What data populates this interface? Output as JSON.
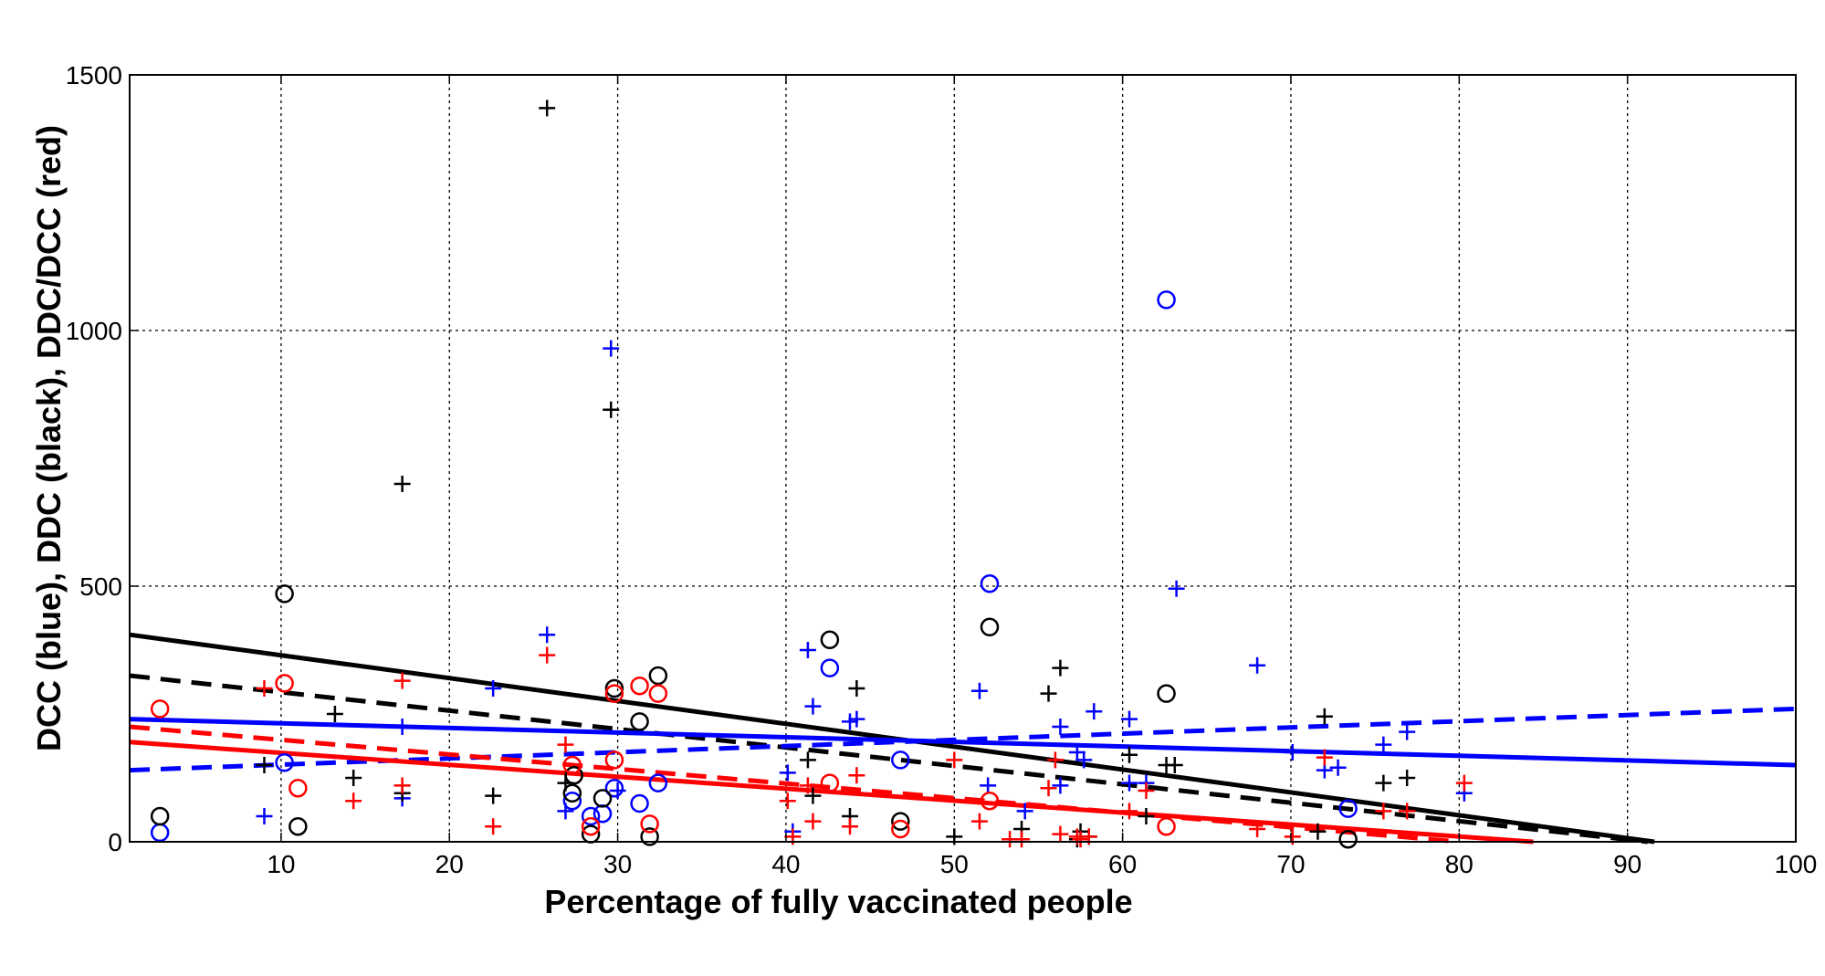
{
  "chart_data": {
    "type": "scatter",
    "title": "",
    "xlabel": "Percentage of fully vaccinated people",
    "ylabel": "DCC (blue), DDC (black), DDC/DCC (red)",
    "xlim": [
      1,
      100
    ],
    "ylim": [
      0,
      1500
    ],
    "x_ticks": [
      10,
      20,
      30,
      40,
      50,
      60,
      70,
      80,
      90,
      100
    ],
    "y_ticks": [
      0,
      500,
      1000,
      1500
    ],
    "grid": true,
    "legend": "none",
    "colors": {
      "blue": "#0000ff",
      "black": "#000000",
      "red": "#ff0000"
    },
    "series": [
      {
        "color": "#0000ff",
        "marker": "circle",
        "points": [
          [
            2.8,
            18
          ],
          [
            10.2,
            155
          ],
          [
            27.3,
            80
          ],
          [
            28.4,
            50
          ],
          [
            29.1,
            55
          ],
          [
            29.8,
            105
          ],
          [
            31.3,
            75
          ],
          [
            32.4,
            115
          ],
          [
            42.6,
            340
          ],
          [
            46.8,
            160
          ],
          [
            52.1,
            505
          ],
          [
            62.6,
            1060
          ],
          [
            73.4,
            65
          ]
        ]
      },
      {
        "color": "#0000ff",
        "marker": "plus",
        "points": [
          [
            9,
            50
          ],
          [
            17.2,
            225
          ],
          [
            17.2,
            85
          ],
          [
            22.6,
            300
          ],
          [
            25.8,
            405
          ],
          [
            26.9,
            60
          ],
          [
            29.6,
            965
          ],
          [
            30,
            100
          ],
          [
            40.1,
            135
          ],
          [
            40.4,
            20
          ],
          [
            41.3,
            375
          ],
          [
            41.6,
            265
          ],
          [
            43.8,
            235
          ],
          [
            44.2,
            240
          ],
          [
            51.5,
            295
          ],
          [
            52,
            110
          ],
          [
            54.2,
            60
          ],
          [
            56.3,
            225
          ],
          [
            56.3,
            110
          ],
          [
            57.3,
            175
          ],
          [
            57.7,
            160
          ],
          [
            58.3,
            255
          ],
          [
            60.4,
            240
          ],
          [
            60.4,
            115
          ],
          [
            61.4,
            115
          ],
          [
            68,
            345
          ],
          [
            70.1,
            175
          ],
          [
            72,
            140
          ],
          [
            72.8,
            145
          ],
          [
            75.5,
            190
          ],
          [
            76.9,
            215
          ],
          [
            80.3,
            95
          ],
          [
            63.2,
            495
          ]
        ]
      },
      {
        "color": "#000000",
        "marker": "circle",
        "points": [
          [
            2.8,
            50
          ],
          [
            10.2,
            485
          ],
          [
            11,
            30
          ],
          [
            27.3,
            95
          ],
          [
            27.4,
            130
          ],
          [
            28.4,
            15
          ],
          [
            29.1,
            85
          ],
          [
            29.8,
            300
          ],
          [
            31.3,
            235
          ],
          [
            31.9,
            10
          ],
          [
            32.4,
            325
          ],
          [
            42.6,
            395
          ],
          [
            46.8,
            40
          ],
          [
            52.1,
            420
          ],
          [
            62.6,
            290
          ],
          [
            73.4,
            5
          ]
        ]
      },
      {
        "color": "#000000",
        "marker": "plus",
        "points": [
          [
            9,
            150
          ],
          [
            13.2,
            250
          ],
          [
            14.3,
            125
          ],
          [
            17.2,
            700
          ],
          [
            17.2,
            95
          ],
          [
            22.6,
            90
          ],
          [
            25.8,
            1435
          ],
          [
            26.9,
            115
          ],
          [
            29.6,
            845
          ],
          [
            41.3,
            160
          ],
          [
            41.6,
            90
          ],
          [
            43.8,
            50
          ],
          [
            44.2,
            300
          ],
          [
            50,
            10
          ],
          [
            54,
            25
          ],
          [
            55.6,
            290
          ],
          [
            56.3,
            340
          ],
          [
            57.3,
            5
          ],
          [
            57.5,
            20
          ],
          [
            58,
            10
          ],
          [
            60.4,
            170
          ],
          [
            61.4,
            50
          ],
          [
            62.6,
            150
          ],
          [
            63.1,
            150
          ],
          [
            71.6,
            20
          ],
          [
            72,
            245
          ],
          [
            75.5,
            115
          ],
          [
            76.9,
            125
          ]
        ]
      },
      {
        "color": "#ff0000",
        "marker": "circle",
        "points": [
          [
            2.8,
            260
          ],
          [
            10.2,
            310
          ],
          [
            11,
            105
          ],
          [
            27.3,
            150
          ],
          [
            28.4,
            30
          ],
          [
            29.8,
            160
          ],
          [
            29.8,
            290
          ],
          [
            31.3,
            305
          ],
          [
            31.9,
            35
          ],
          [
            32.4,
            290
          ],
          [
            42.6,
            115
          ],
          [
            46.8,
            25
          ],
          [
            52.1,
            80
          ],
          [
            62.6,
            30
          ]
        ]
      },
      {
        "color": "#ff0000",
        "marker": "plus",
        "points": [
          [
            9,
            300
          ],
          [
            14.3,
            80
          ],
          [
            17.2,
            315
          ],
          [
            17.2,
            110
          ],
          [
            22.6,
            30
          ],
          [
            25.8,
            365
          ],
          [
            26.9,
            190
          ],
          [
            40.1,
            80
          ],
          [
            40.4,
            10
          ],
          [
            41.3,
            110
          ],
          [
            41.6,
            40
          ],
          [
            43.8,
            30
          ],
          [
            44.2,
            130
          ],
          [
            50,
            160
          ],
          [
            51.5,
            40
          ],
          [
            53.3,
            5
          ],
          [
            54,
            5
          ],
          [
            55.6,
            105
          ],
          [
            56,
            160
          ],
          [
            56.3,
            15
          ],
          [
            57.3,
            10
          ],
          [
            57.5,
            5
          ],
          [
            58,
            10
          ],
          [
            60.4,
            60
          ],
          [
            61.4,
            100
          ],
          [
            68,
            25
          ],
          [
            70.1,
            10
          ],
          [
            72,
            165
          ],
          [
            75.5,
            60
          ],
          [
            76.9,
            60
          ],
          [
            80.3,
            115
          ]
        ]
      }
    ],
    "lines": [
      {
        "color": "#000000",
        "style": "solid",
        "points": [
          [
            1,
            405
          ],
          [
            91.6,
            0
          ]
        ]
      },
      {
        "color": "#000000",
        "style": "dashed",
        "points": [
          [
            1,
            325
          ],
          [
            91.2,
            0
          ]
        ]
      },
      {
        "color": "#0000ff",
        "style": "solid",
        "points": [
          [
            1,
            240
          ],
          [
            100,
            150
          ]
        ]
      },
      {
        "color": "#0000ff",
        "style": "dashed",
        "points": [
          [
            1,
            140
          ],
          [
            100,
            260
          ]
        ]
      },
      {
        "color": "#ff0000",
        "style": "solid",
        "points": [
          [
            1,
            195
          ],
          [
            84.4,
            0
          ]
        ]
      },
      {
        "color": "#ff0000",
        "style": "dashed",
        "points": [
          [
            1,
            225
          ],
          [
            80,
            0
          ]
        ]
      }
    ]
  }
}
